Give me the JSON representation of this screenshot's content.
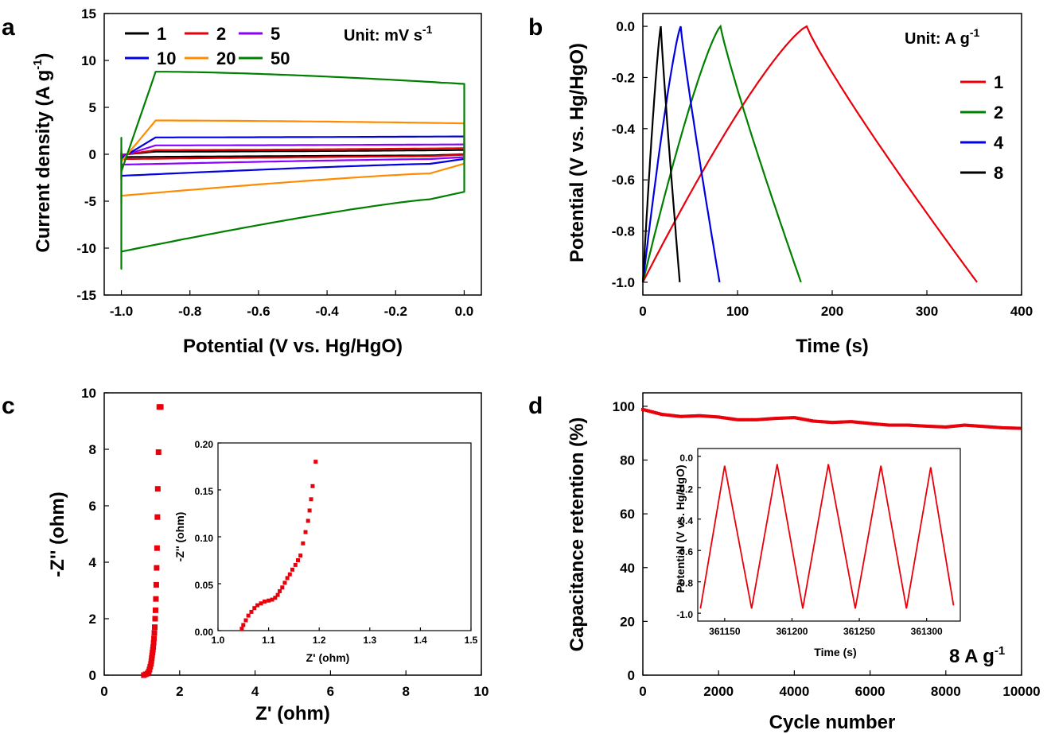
{
  "panels": {
    "a": {
      "letter": "a",
      "xlabel": "Potential (V vs. Hg/HgO)",
      "ylabel_main": "Current density (A g",
      "ylabel_sup": "-1",
      "ylabel_end": ")",
      "unit_main": "Unit: mV s",
      "unit_sup": "-1"
    },
    "b": {
      "letter": "b",
      "xlabel": "Time (s)",
      "ylabel": "Potential (V vs. Hg/HgO)",
      "unit_main": "Unit: A g",
      "unit_sup": "-1"
    },
    "c": {
      "letter": "c",
      "xlabel": "Z' (ohm)",
      "ylabel": "-Z'' (ohm)",
      "inset_xlabel": "Z' (ohm)",
      "inset_ylabel": "-Z'' (ohm)"
    },
    "d": {
      "letter": "d",
      "xlabel": "Cycle number",
      "ylabel": "Capacitance retention (%)",
      "inset_xlabel": "Time (s)",
      "inset_ylabel": "Potential (V vs. Hg/HgO)",
      "annotation_main": "8 A g",
      "annotation_sup": "-1"
    }
  },
  "chart_data": [
    {
      "id": "a",
      "type": "line",
      "xlabel": "Potential (V vs. Hg/HgO)",
      "ylabel": "Current density (A g-1)",
      "xlim": [
        -1.05,
        0.05
      ],
      "ylim": [
        -15,
        15
      ],
      "xticks": [
        -1.0,
        -0.8,
        -0.6,
        -0.4,
        -0.2,
        0.0
      ],
      "yticks": [
        -15,
        -10,
        -5,
        0,
        5,
        10,
        15
      ],
      "legend_title": "Unit: mV s-1",
      "legend_position": "top",
      "series": [
        {
          "name": "1",
          "color": "#000000",
          "cv": {
            "top_plateau": 0.28,
            "top_end": 0.45,
            "bot_start": -0.35,
            "bot_mid": -0.2,
            "bot_end": 0.0
          }
        },
        {
          "name": "2",
          "color": "#e8000b",
          "cv": {
            "top_plateau": 0.45,
            "top_end": 0.65,
            "bot_start": -0.6,
            "bot_mid": -0.35,
            "bot_end": -0.05
          }
        },
        {
          "name": "5",
          "color": "#8b00ff",
          "cv": {
            "top_plateau": 0.95,
            "top_end": 1.05,
            "bot_start": -1.3,
            "bot_mid": -0.85,
            "bot_end": -0.3
          }
        },
        {
          "name": "10",
          "color": "#0000e0",
          "cv": {
            "top_plateau": 1.8,
            "top_end": 1.9,
            "bot_start": -2.7,
            "bot_mid": -1.7,
            "bot_end": -0.5
          }
        },
        {
          "name": "20",
          "color": "#ff8c00",
          "cv": {
            "top_plateau": 3.6,
            "top_end": 3.3,
            "bot_start": -5.2,
            "bot_mid": -3.4,
            "bot_end": -1.0
          }
        },
        {
          "name": "50",
          "color": "#008000",
          "cv": {
            "top_plateau": 8.8,
            "top_end": 7.5,
            "bot_start": -12.2,
            "bot_mid": -8.0,
            "bot_end": -4.0
          }
        }
      ]
    },
    {
      "id": "b",
      "type": "line",
      "xlabel": "Time (s)",
      "ylabel": "Potential (V vs. Hg/HgO)",
      "xlim": [
        0,
        400
      ],
      "ylim": [
        -1.05,
        0.05
      ],
      "xticks": [
        0,
        100,
        200,
        300,
        400
      ],
      "yticks": [
        0.0,
        -0.2,
        -0.4,
        -0.6,
        -0.8,
        -1.0
      ],
      "legend_title": "Unit: A g-1",
      "legend_position": "right",
      "series": [
        {
          "name": "1",
          "color": "#e8000b",
          "t_peak": 173,
          "t_end": 353
        },
        {
          "name": "2",
          "color": "#008000",
          "t_peak": 82,
          "t_end": 167
        },
        {
          "name": "4",
          "color": "#0000e0",
          "t_peak": 40,
          "t_end": 81
        },
        {
          "name": "8",
          "color": "#000000",
          "t_peak": 19,
          "t_end": 39
        }
      ]
    },
    {
      "id": "c",
      "type": "scatter",
      "xlabel": "Z' (ohm)",
      "ylabel": "-Z'' (ohm)",
      "xlim": [
        0,
        10
      ],
      "ylim": [
        0,
        10
      ],
      "xticks": [
        0,
        2,
        4,
        6,
        8,
        10
      ],
      "yticks": [
        0,
        2,
        4,
        6,
        8,
        10
      ],
      "color": "#e8000b",
      "points": [
        [
          1.05,
          0.0
        ],
        [
          1.1,
          0.03
        ],
        [
          1.15,
          0.06
        ],
        [
          1.18,
          0.12
        ],
        [
          1.2,
          0.2
        ],
        [
          1.22,
          0.3
        ],
        [
          1.24,
          0.4
        ],
        [
          1.25,
          0.5
        ],
        [
          1.26,
          0.6
        ],
        [
          1.27,
          0.7
        ],
        [
          1.28,
          0.8
        ],
        [
          1.29,
          0.9
        ],
        [
          1.3,
          1.0
        ],
        [
          1.31,
          1.15
        ],
        [
          1.32,
          1.3
        ],
        [
          1.33,
          1.5
        ],
        [
          1.34,
          1.7
        ],
        [
          1.35,
          2.0
        ],
        [
          1.36,
          2.3
        ],
        [
          1.37,
          2.7
        ],
        [
          1.38,
          3.2
        ],
        [
          1.39,
          3.8
        ],
        [
          1.4,
          4.5
        ],
        [
          1.41,
          5.6
        ],
        [
          1.42,
          6.6
        ],
        [
          1.44,
          7.9
        ],
        [
          1.46,
          9.5
        ],
        [
          1.5,
          9.5
        ]
      ],
      "inset": {
        "xlabel": "Z' (ohm)",
        "ylabel": "-Z'' (ohm)",
        "xlim": [
          1.0,
          1.5
        ],
        "ylim": [
          0.0,
          0.2
        ],
        "xticks": [
          1.0,
          1.1,
          1.2,
          1.3,
          1.4,
          1.5
        ],
        "yticks": [
          0.0,
          0.05,
          0.1,
          0.15,
          0.2
        ],
        "points": [
          [
            1.047,
            0.002
          ],
          [
            1.05,
            0.006
          ],
          [
            1.055,
            0.011
          ],
          [
            1.06,
            0.016
          ],
          [
            1.066,
            0.02
          ],
          [
            1.072,
            0.024
          ],
          [
            1.078,
            0.027
          ],
          [
            1.085,
            0.029
          ],
          [
            1.092,
            0.031
          ],
          [
            1.1,
            0.032
          ],
          [
            1.107,
            0.033
          ],
          [
            1.113,
            0.035
          ],
          [
            1.118,
            0.038
          ],
          [
            1.122,
            0.042
          ],
          [
            1.127,
            0.046
          ],
          [
            1.132,
            0.051
          ],
          [
            1.137,
            0.056
          ],
          [
            1.142,
            0.06
          ],
          [
            1.147,
            0.065
          ],
          [
            1.153,
            0.07
          ],
          [
            1.158,
            0.075
          ],
          [
            1.163,
            0.08
          ],
          [
            1.168,
            0.093
          ],
          [
            1.173,
            0.105
          ],
          [
            1.178,
            0.117
          ],
          [
            1.181,
            0.128
          ],
          [
            1.184,
            0.14
          ],
          [
            1.187,
            0.154
          ],
          [
            1.193,
            0.18
          ]
        ]
      }
    },
    {
      "id": "d",
      "type": "scatter",
      "xlabel": "Cycle number",
      "ylabel": "Capacitance retention (%)",
      "xlim": [
        0,
        10000
      ],
      "ylim": [
        0,
        105
      ],
      "xticks": [
        0,
        2000,
        4000,
        6000,
        8000,
        10000
      ],
      "yticks": [
        0,
        20,
        40,
        60,
        80,
        100
      ],
      "color": "#e8000b",
      "curve": [
        [
          0,
          98.8
        ],
        [
          500,
          97.0
        ],
        [
          1000,
          96.2
        ],
        [
          1500,
          96.5
        ],
        [
          2000,
          96.0
        ],
        [
          2500,
          95.0
        ],
        [
          3000,
          95.0
        ],
        [
          3500,
          95.5
        ],
        [
          4000,
          95.8
        ],
        [
          4500,
          94.5
        ],
        [
          5000,
          94.0
        ],
        [
          5500,
          94.3
        ],
        [
          6000,
          93.6
        ],
        [
          6500,
          93.0
        ],
        [
          7000,
          93.0
        ],
        [
          7500,
          92.6
        ],
        [
          8000,
          92.3
        ],
        [
          8500,
          93.0
        ],
        [
          9000,
          92.5
        ],
        [
          9500,
          92.0
        ],
        [
          10000,
          91.8
        ]
      ],
      "annotation": "8 A g-1",
      "inset": {
        "xlabel": "Time (s)",
        "ylabel": "Potential (V vs. Hg/HgO)",
        "xlim": [
          361130,
          361325
        ],
        "ylim": [
          -1.05,
          0.05
        ],
        "xticks": [
          361150,
          361200,
          361250,
          361300
        ],
        "yticks": [
          0.0,
          -0.2,
          -0.4,
          -0.6,
          -0.8,
          -1.0
        ],
        "points": [
          [
            361132,
            -0.97
          ],
          [
            361150,
            -0.06
          ],
          [
            361170,
            -0.97
          ],
          [
            361189,
            -0.05
          ],
          [
            361208,
            -0.97
          ],
          [
            361227,
            -0.05
          ],
          [
            361247,
            -0.97
          ],
          [
            361266,
            -0.06
          ],
          [
            361285,
            -0.97
          ],
          [
            361303,
            -0.07
          ],
          [
            361320,
            -0.95
          ]
        ]
      }
    }
  ]
}
